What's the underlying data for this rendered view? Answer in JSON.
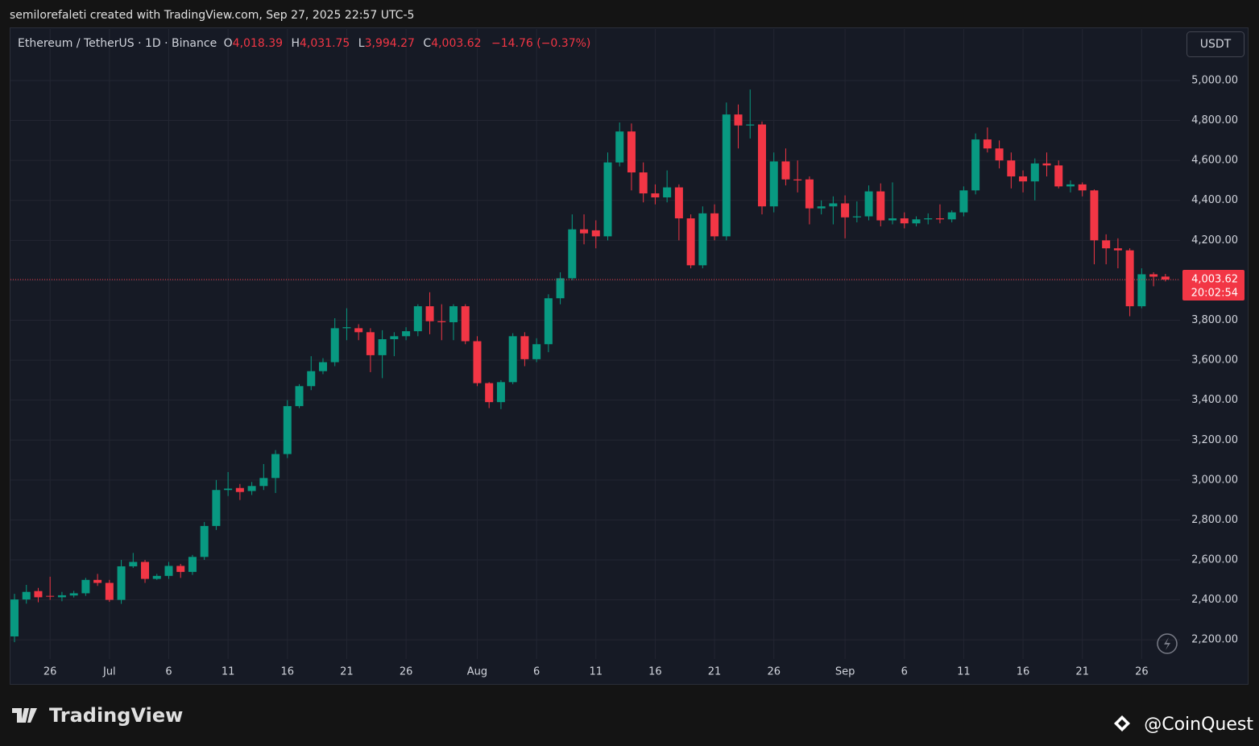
{
  "chart_data": {
    "type": "candlestick",
    "credit": "semilorefaleti created with TradingView.com, Sep 27, 2025 22:57 UTC-5",
    "legend": {
      "symbol": "Ethereum / TetherUS · 1D · Binance",
      "o_label": "O",
      "o": "4,018.39",
      "h_label": "H",
      "h": "4,031.75",
      "l_label": "L",
      "l": "3,994.27",
      "c_label": "C",
      "c": "4,003.62",
      "change": "−14.76 (−0.37%)"
    },
    "currency": "USDT",
    "last_price_label": "4,003.62",
    "countdown": "20:02:54",
    "brand": "TradingView",
    "watermark": "@CoinQuest",
    "up_color": "#089981",
    "down_color": "#f23645",
    "grid": true,
    "categories": [
      null,
      null,
      null,
      "26",
      null,
      null,
      null,
      null,
      "Jul",
      null,
      null,
      null,
      null,
      "6",
      null,
      null,
      null,
      null,
      "11",
      null,
      null,
      null,
      null,
      "16",
      null,
      null,
      null,
      null,
      "21",
      null,
      null,
      null,
      null,
      "26",
      null,
      null,
      null,
      null,
      null,
      "Aug",
      null,
      null,
      null,
      null,
      "6",
      null,
      null,
      null,
      null,
      "11",
      null,
      null,
      null,
      null,
      "16",
      null,
      null,
      null,
      null,
      "21",
      null,
      null,
      null,
      null,
      "26",
      null,
      null,
      null,
      null,
      null,
      "Sep",
      null,
      null,
      null,
      null,
      "6",
      null,
      null,
      null,
      null,
      "11",
      null,
      null,
      null,
      null,
      "16",
      null,
      null,
      null,
      null,
      "21",
      null,
      null,
      null,
      null,
      "26",
      null,
      null
    ],
    "open": [
      2217,
      2402,
      2444,
      2420,
      2413,
      2422,
      2433,
      2500,
      2485,
      2400,
      2568,
      2590,
      2505,
      2520,
      2570,
      2540,
      2615,
      2770,
      2950,
      2960,
      2945,
      2970,
      3010,
      3130,
      3370,
      3470,
      3545,
      3590,
      3760,
      3760,
      3740,
      3625,
      3705,
      3720,
      3745,
      3870,
      3795,
      3790,
      3870,
      3695,
      3485,
      3390,
      3490,
      3720,
      3605,
      3680,
      3910,
      4010,
      4255,
      4250,
      4220,
      4590,
      4745,
      4540,
      4435,
      4415,
      4465,
      4310,
      4075,
      4335,
      4220,
      4830,
      4775,
      4780,
      4370,
      4595,
      4505,
      4505,
      4360,
      4370,
      4385,
      4315,
      4320,
      4445,
      4300,
      4310,
      4285,
      4305,
      4310,
      4305,
      4340,
      4450,
      4705,
      4660,
      4600,
      4520,
      4495,
      4585,
      4575,
      4470,
      4480,
      4450,
      4200,
      4160,
      4150,
      3870,
      4030,
      4018.39
    ],
    "high": [
      2430,
      2475,
      2460,
      2516,
      2440,
      2445,
      2510,
      2530,
      2500,
      2600,
      2635,
      2600,
      2530,
      2590,
      2580,
      2625,
      2790,
      3000,
      3040,
      2980,
      2990,
      3080,
      3150,
      3400,
      3480,
      3620,
      3610,
      3810,
      3860,
      3780,
      3760,
      3750,
      3740,
      3765,
      3880,
      3940,
      3880,
      3880,
      3880,
      3720,
      3490,
      3500,
      3735,
      3740,
      3710,
      3930,
      4040,
      4330,
      4330,
      4300,
      4640,
      4790,
      4785,
      4590,
      4480,
      4550,
      4480,
      4330,
      4370,
      4380,
      4890,
      4880,
      4955,
      4795,
      4640,
      4660,
      4600,
      4520,
      4400,
      4420,
      4425,
      4395,
      4475,
      4485,
      4490,
      4340,
      4320,
      4335,
      4380,
      4350,
      4470,
      4735,
      4765,
      4700,
      4640,
      4550,
      4610,
      4640,
      4600,
      4500,
      4490,
      4455,
      4230,
      4210,
      4160,
      4060,
      4040,
      4031.75
    ],
    "low": [
      2188,
      2381,
      2388,
      2400,
      2393,
      2412,
      2420,
      2470,
      2390,
      2380,
      2560,
      2485,
      2500,
      2505,
      2510,
      2525,
      2600,
      2750,
      2920,
      2900,
      2925,
      2950,
      2935,
      3110,
      3360,
      3450,
      3530,
      3570,
      3700,
      3700,
      3540,
      3510,
      3620,
      3700,
      3720,
      3730,
      3700,
      3700,
      3680,
      3470,
      3360,
      3355,
      3480,
      3570,
      3590,
      3640,
      3880,
      4000,
      4180,
      4160,
      4200,
      4570,
      4450,
      4390,
      4380,
      4390,
      4200,
      4060,
      4060,
      4200,
      4200,
      4660,
      4710,
      4330,
      4340,
      4475,
      4440,
      4280,
      4330,
      4280,
      4210,
      4290,
      4300,
      4270,
      4280,
      4260,
      4270,
      4280,
      4285,
      4290,
      4320,
      4430,
      4640,
      4560,
      4460,
      4440,
      4400,
      4520,
      4460,
      4440,
      4420,
      4080,
      4080,
      4060,
      3820,
      3860,
      3970,
      3994.27
    ],
    "close": [
      2402,
      2440,
      2413,
      2416,
      2423,
      2433,
      2500,
      2485,
      2400,
      2568,
      2590,
      2505,
      2520,
      2570,
      2540,
      2615,
      2770,
      2950,
      2957,
      2940,
      2970,
      3010,
      3130,
      3370,
      3470,
      3545,
      3590,
      3760,
      3765,
      3740,
      3625,
      3705,
      3720,
      3745,
      3870,
      3795,
      3790,
      3870,
      3695,
      3485,
      3390,
      3490,
      3720,
      3605,
      3680,
      3910,
      4010,
      4255,
      4235,
      4220,
      4590,
      4745,
      4540,
      4435,
      4415,
      4465,
      4310,
      4075,
      4335,
      4220,
      4830,
      4775,
      4780,
      4370,
      4595,
      4505,
      4500,
      4360,
      4370,
      4385,
      4315,
      4320,
      4445,
      4300,
      4310,
      4285,
      4305,
      4310,
      4305,
      4340,
      4450,
      4705,
      4660,
      4600,
      4520,
      4495,
      4585,
      4575,
      4470,
      4480,
      4450,
      4200,
      4160,
      4150,
      3870,
      4030,
      4018,
      4003.62
    ],
    "ylim": [
      2104,
      5258
    ],
    "yticks": [
      {
        "value": 2200,
        "label": "2,200.00"
      },
      {
        "value": 2400,
        "label": "2,400.00"
      },
      {
        "value": 2600,
        "label": "2,600.00"
      },
      {
        "value": 2800,
        "label": "2,800.00"
      },
      {
        "value": 3000,
        "label": "3,000.00"
      },
      {
        "value": 3200,
        "label": "3,200.00"
      },
      {
        "value": 3400,
        "label": "3,400.00"
      },
      {
        "value": 3600,
        "label": "3,600.00"
      },
      {
        "value": 3800,
        "label": "3,800.00"
      },
      {
        "value": 4000,
        "label": "4,000.00"
      },
      {
        "value": 4200,
        "label": "4,200.00"
      },
      {
        "value": 4400,
        "label": "4,400.00"
      },
      {
        "value": 4600,
        "label": "4,600.00"
      },
      {
        "value": 4800,
        "label": "4,800.00"
      },
      {
        "value": 5000,
        "label": "5,000.00"
      }
    ]
  }
}
